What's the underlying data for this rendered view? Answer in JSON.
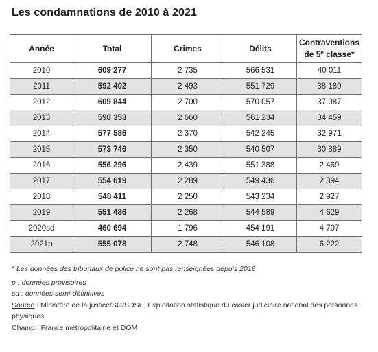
{
  "title": "Les condamnations de 2010 à 2021",
  "table": {
    "headers": {
      "year": "Année",
      "total": "Total",
      "crimes": "Crimes",
      "delits": "Délits",
      "contraventions_line1": "Contraventions",
      "contraventions_line2_pre": "de 5",
      "contraventions_line2_sup": "e",
      "contraventions_line2_post": " classe*"
    },
    "rows": [
      {
        "year": "2010",
        "total": "609 277",
        "crimes": "2 735",
        "delits": "566 531",
        "contraventions": "40 011"
      },
      {
        "year": "2011",
        "total": "592 402",
        "crimes": "2 493",
        "delits": "551 729",
        "contraventions": "38 180"
      },
      {
        "year": "2012",
        "total": "609 844",
        "crimes": "2 700",
        "delits": "570 057",
        "contraventions": "37 087"
      },
      {
        "year": "2013",
        "total": "598 353",
        "crimes": "2 660",
        "delits": "561 234",
        "contraventions": "34 459"
      },
      {
        "year": "2014",
        "total": "577 586",
        "crimes": "2 370",
        "delits": "542 245",
        "contraventions": "32 971"
      },
      {
        "year": "2015",
        "total": "573 746",
        "crimes": "2 350",
        "delits": "540 507",
        "contraventions": "30 889"
      },
      {
        "year": "2016",
        "total": "556 296",
        "crimes": "2 439",
        "delits": "551 388",
        "contraventions": "2 469"
      },
      {
        "year": "2017",
        "total": "554 619",
        "crimes": "2 289",
        "delits": "549 436",
        "contraventions": "2 894"
      },
      {
        "year": "2018",
        "total": "548 411",
        "crimes": "2 250",
        "delits": "543 234",
        "contraventions": "2 927"
      },
      {
        "year": "2019",
        "total": "551 486",
        "crimes": "2 268",
        "delits": "544 589",
        "contraventions": "4 629"
      },
      {
        "year": "2020sd",
        "total": "460 694",
        "crimes": "1 796",
        "delits": "454 191",
        "contraventions": "4 707"
      },
      {
        "year": "2021p",
        "total": "555 078",
        "crimes": "2 748",
        "delits": "546 108",
        "contraventions": "6 222"
      }
    ]
  },
  "notes": {
    "footnote": "* Les données des tribunaux de police ne sont pas renseignées depuis 2016",
    "p": "p : données provisoires",
    "sd": "sd : données semi-définitives",
    "source_label": "Source",
    "source_text": " : Ministère de la justice/SG/SDSE, Exploitation statistique du casier judiciaire national des personnes physiques",
    "champ_label": "Champ",
    "champ_text": " : France métropolitaine et DOM"
  },
  "colors": {
    "row_shade": "#e3e3e3",
    "border": "#6e6e6e"
  }
}
